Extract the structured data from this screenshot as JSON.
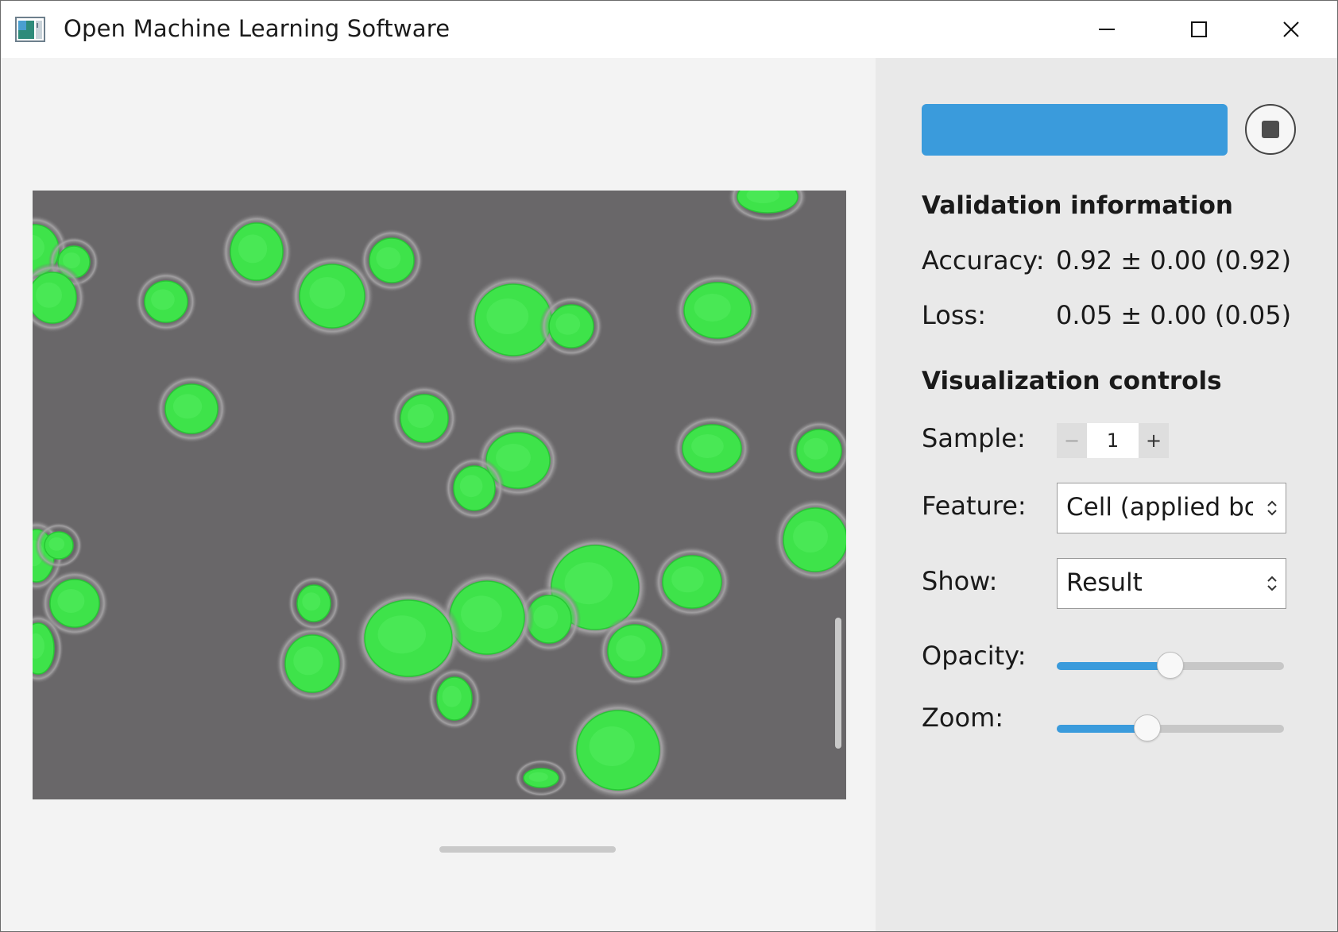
{
  "window": {
    "title": "Open Machine Learning Software",
    "minimize_icon": "minimize-icon",
    "maximize_icon": "maximize-icon",
    "close_icon": "close-icon"
  },
  "image_view": {
    "overlay_color": "#3ee34a",
    "background_color": "#696769"
  },
  "panel": {
    "train_button_color": "#3a9bdc",
    "train_button_label": "",
    "stop_icon": "stop-icon",
    "validation": {
      "heading": "Validation information",
      "accuracy_label": "Accuracy:",
      "accuracy_value": "0.92 ± 0.00 (0.92)",
      "loss_label": "Loss:",
      "loss_value": "0.05 ± 0.00 (0.05)"
    },
    "visualization": {
      "heading": "Visualization controls",
      "sample_label": "Sample:",
      "sample_value": "1",
      "sample_minus": "−",
      "sample_plus": "+",
      "feature_label": "Feature:",
      "feature_value": "Cell (applied bor",
      "show_label": "Show:",
      "show_value": "Result",
      "opacity_label": "Opacity:",
      "opacity_value": 0.5,
      "zoom_label": "Zoom:",
      "zoom_value": 0.4
    }
  }
}
